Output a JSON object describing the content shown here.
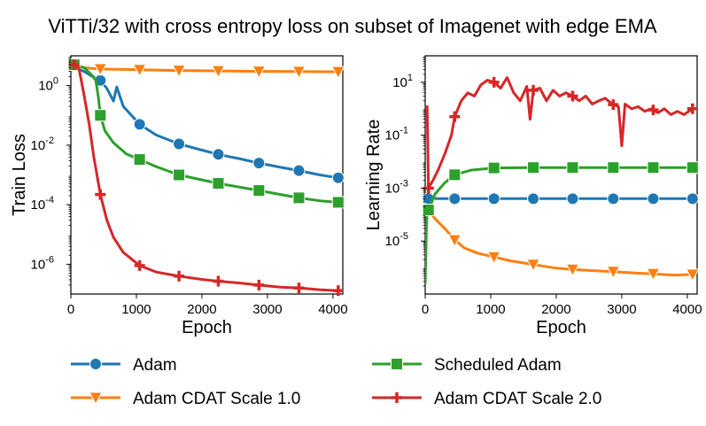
{
  "colors": {
    "adam": "#1f77b4",
    "adam_cdat_1": "#ff7f0e",
    "scheduled_adam": "#2ca02c",
    "adam_cdat_2": "#d62728"
  },
  "chart_data": [
    {
      "type": "line",
      "title": "ViTTi/32 with cross entropy loss on subset of Imagenet with edge EMA",
      "xlabel": "Epoch",
      "ylabel": "Train Loss",
      "yscale": "log",
      "xlim": [
        0,
        4150
      ],
      "ylim": [
        1e-07,
        10
      ],
      "xticks": [
        "0",
        "1000",
        "2000",
        "3000",
        "4000"
      ],
      "yticks": [
        {
          "exp": "0",
          "label": "10"
        },
        {
          "exp": "-2",
          "label": "10"
        },
        {
          "exp": "-4",
          "label": "10"
        },
        {
          "exp": "-6",
          "label": "10"
        }
      ],
      "legend_position": "bottom",
      "series": [
        {
          "name": "Adam",
          "key": "adam",
          "marker": "circle",
          "x": [
            50,
            200,
            300,
            450,
            550,
            650,
            700,
            800,
            1050,
            1300,
            1650,
            2000,
            2250,
            2600,
            2870,
            3200,
            3480,
            3800,
            4080
          ],
          "y": [
            4,
            3,
            2.2,
            1.5,
            0.8,
            0.3,
            0.9,
            0.2,
            0.05,
            0.022,
            0.011,
            0.0068,
            0.0049,
            0.0034,
            0.0025,
            0.0018,
            0.0014,
            0.001,
            0.0008
          ],
          "markers_at": [
            450,
            1050,
            1650,
            2250,
            2870,
            3480,
            4080
          ]
        },
        {
          "name": "Adam CDAT Scale 1.0",
          "key": "adam_cdat_1",
          "marker": "triangle-down",
          "x": [
            50,
            150,
            300,
            450,
            1050,
            1650,
            2250,
            2870,
            3480,
            4080
          ],
          "y": [
            5,
            4.2,
            3.8,
            3.6,
            3.4,
            3.2,
            3.1,
            3.0,
            2.95,
            2.9
          ],
          "markers_at": [
            50,
            450,
            1050,
            1650,
            2250,
            2870,
            3480,
            4080
          ]
        },
        {
          "name": "Scheduled Adam",
          "key": "scheduled_adam",
          "marker": "square",
          "x": [
            50,
            200,
            300,
            380,
            420,
            450,
            520,
            650,
            850,
            1050,
            1300,
            1650,
            2000,
            2250,
            2600,
            2870,
            3200,
            3480,
            3800,
            4080
          ],
          "y": [
            5,
            4,
            2.5,
            1.5,
            0.4,
            0.1,
            0.03,
            0.012,
            0.005,
            0.0033,
            0.0019,
            0.001,
            0.00068,
            0.00052,
            0.00038,
            0.0003,
            0.00022,
            0.00017,
            0.000135,
            0.00012
          ],
          "markers_at": [
            50,
            450,
            1050,
            1650,
            2250,
            2870,
            3480,
            4080
          ]
        },
        {
          "name": "Adam CDAT Scale 2.0",
          "key": "adam_cdat_2",
          "marker": "plus",
          "x": [
            50,
            120,
            200,
            280,
            350,
            450,
            550,
            650,
            800,
            1050,
            1300,
            1650,
            2000,
            2250,
            2600,
            2870,
            3200,
            3480,
            3800,
            4080
          ],
          "y": [
            5,
            4,
            0.5,
            0.05,
            0.004,
            0.00022,
            3e-05,
            8e-06,
            2.5e-06,
            9e-07,
            5.5e-07,
            4e-07,
            3.1e-07,
            2.7e-07,
            2.3e-07,
            2e-07,
            1.7e-07,
            1.6e-07,
            1.4e-07,
            1.3e-07
          ],
          "markers_at": [
            50,
            450,
            1050,
            1650,
            2250,
            2870,
            3480,
            4080
          ]
        }
      ]
    },
    {
      "type": "line",
      "xlabel": "Epoch",
      "ylabel": "Learning Rate",
      "yscale": "log",
      "xlim": [
        0,
        4150
      ],
      "ylim": [
        1e-07,
        100
      ],
      "xticks": [
        "0",
        "1000",
        "2000",
        "3000",
        "4000"
      ],
      "yticks": [
        {
          "exp": "1",
          "label": "10"
        },
        {
          "exp": "-1",
          "label": "10"
        },
        {
          "exp": "-3",
          "label": "10"
        },
        {
          "exp": "-5",
          "label": "10"
        }
      ],
      "series": [
        {
          "name": "Adam",
          "key": "adam",
          "marker": "circle",
          "x": [
            50,
            450,
            1050,
            1650,
            2250,
            2870,
            3480,
            4080
          ],
          "y": [
            0.0004,
            0.0004,
            0.0004,
            0.0004,
            0.0004,
            0.0004,
            0.0004,
            0.0004
          ],
          "markers_at": [
            50,
            450,
            1050,
            1650,
            2250,
            2870,
            3480,
            4080
          ]
        },
        {
          "name": "Adam CDAT Scale 1.0",
          "key": "adam_cdat_1",
          "marker": "triangle-down",
          "x": [
            50,
            150,
            300,
            450,
            600,
            800,
            1050,
            1300,
            1650,
            2000,
            2250,
            2600,
            2870,
            3200,
            3480,
            3800,
            4080
          ],
          "y": [
            0.00015,
            7e-05,
            3e-05,
            1.1e-05,
            5.5e-06,
            3.5e-06,
            2.5e-06,
            1.8e-06,
            1.3e-06,
            9.5e-07,
            8.5e-07,
            7.5e-07,
            7e-07,
            6.2e-07,
            5.8e-07,
            5.2e-07,
            5.5e-07
          ],
          "markers_at": [
            50,
            450,
            1050,
            1650,
            2250,
            2870,
            3480,
            4080
          ]
        },
        {
          "name": "Scheduled Adam",
          "key": "scheduled_adam",
          "marker": "square",
          "x": [
            0,
            20,
            30,
            50,
            150,
            300,
            450,
            700,
            1050,
            1650,
            2250,
            2870,
            3480,
            4080
          ],
          "y": [
            2.5e-07,
            5e-05,
            0.00013,
            0.00015,
            0.0006,
            0.0016,
            0.0032,
            0.0048,
            0.0058,
            0.006,
            0.006,
            0.006,
            0.006,
            0.006
          ],
          "markers_at": [
            50,
            450,
            1050,
            1650,
            2250,
            2870,
            3480,
            4080
          ]
        },
        {
          "name": "Adam CDAT Scale 2.0",
          "key": "adam_cdat_2",
          "marker": "plus",
          "x": [
            0,
            30,
            50,
            120,
            200,
            300,
            400,
            450,
            550,
            650,
            750,
            850,
            950,
            1050,
            1150,
            1250,
            1350,
            1450,
            1550,
            1600,
            1650,
            1750,
            1850,
            1950,
            2050,
            2150,
            2250,
            2350,
            2450,
            2550,
            2650,
            2750,
            2850,
            2950,
            3000,
            3050,
            3150,
            3250,
            3350,
            3450,
            3550,
            3650,
            3750,
            3850,
            3950,
            4080
          ],
          "y": [
            1,
            1.2,
            0.001,
            0.002,
            0.005,
            0.02,
            0.1,
            0.5,
            2,
            4,
            3,
            8,
            12,
            10,
            6,
            15,
            4,
            2,
            7,
            0.4,
            5,
            6,
            2,
            5,
            3,
            4,
            3,
            2,
            3,
            1.5,
            2,
            2.5,
            1.5,
            1.2,
            0.04,
            1.5,
            1,
            1.2,
            0.8,
            1,
            0.7,
            1,
            0.6,
            0.8,
            0.6,
            1
          ],
          "markers_at": [
            50,
            450,
            1050,
            1650,
            2250,
            2870,
            3480,
            4080
          ]
        }
      ]
    }
  ],
  "legend": [
    {
      "label": "Adam",
      "key": "adam",
      "marker": "circle"
    },
    {
      "label": "Scheduled Adam",
      "key": "scheduled_adam",
      "marker": "square"
    },
    {
      "label": "Adam CDAT Scale 1.0",
      "key": "adam_cdat_1",
      "marker": "triangle-down"
    },
    {
      "label": "Adam CDAT Scale 2.0",
      "key": "adam_cdat_2",
      "marker": "plus"
    }
  ]
}
